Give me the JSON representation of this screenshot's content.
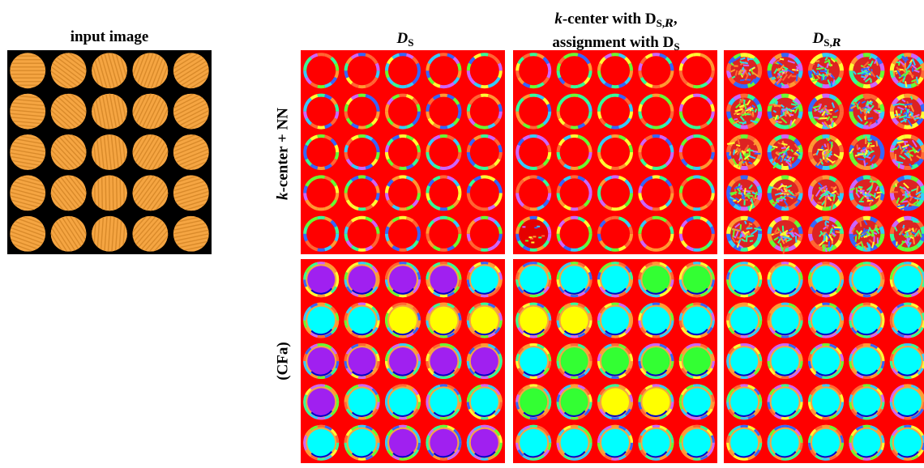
{
  "labels": {
    "input_title": "input image",
    "col1": "D",
    "col1_sub": "S",
    "col2_line1_k": "k",
    "col2_line1_rest": "-center with D",
    "col2_line1_sub_s": "S,",
    "col2_line1_sub_r": "R",
    "col2_line1_comma": ",",
    "col2_line2": "assignment with D",
    "col2_line2_sub": "S",
    "col3": "D",
    "col3_sub_s": "S,",
    "col3_sub_r": "R",
    "row1_k": "k",
    "row1_rest": "-center + NN",
    "row2": "(CFa)"
  },
  "colors": {
    "background_red": "#ff0000",
    "disc_orange": "#f5a542",
    "stripe_orange": "#d98a2a",
    "purple": "#a020f0",
    "cyan": "#00ffff",
    "yellow": "#ffff00",
    "green": "#33ff33",
    "dark_blue": "#0000cc"
  },
  "panels": [
    {
      "id": "knn-ds",
      "style": "ring"
    },
    {
      "id": "knn-mix",
      "style": "ring-mix"
    },
    {
      "id": "knn-dsr",
      "style": "noisy"
    },
    {
      "id": "cfa-ds",
      "fills": [
        [
          "purple",
          "purple",
          "purple",
          "purple",
          "cyan"
        ],
        [
          "cyan",
          "cyan",
          "yellow",
          "yellow",
          "yellow"
        ],
        [
          "purple",
          "purple",
          "purple",
          "purple",
          "purple"
        ],
        [
          "purple",
          "cyan",
          "cyan",
          "cyan",
          "cyan"
        ],
        [
          "cyan",
          "cyan",
          "purple",
          "purple",
          "purple"
        ]
      ]
    },
    {
      "id": "cfa-mix",
      "fills": [
        [
          "cyan",
          "cyan",
          "cyan",
          "green",
          "green"
        ],
        [
          "yellow",
          "yellow",
          "cyan",
          "cyan",
          "cyan"
        ],
        [
          "cyan",
          "green",
          "green",
          "green",
          "green"
        ],
        [
          "green",
          "green",
          "yellow",
          "yellow",
          "cyan"
        ],
        [
          "cyan",
          "cyan",
          "cyan",
          "cyan",
          "cyan"
        ]
      ]
    },
    {
      "id": "cfa-dsr",
      "fills": [
        [
          "cyan",
          "cyan",
          "cyan",
          "cyan",
          "cyan"
        ],
        [
          "cyan",
          "cyan",
          "cyan",
          "cyan",
          "cyan"
        ],
        [
          "cyan",
          "cyan",
          "cyan",
          "cyan",
          "cyan"
        ],
        [
          "cyan",
          "cyan",
          "cyan",
          "cyan",
          "cyan"
        ],
        [
          "cyan",
          "cyan",
          "cyan",
          "cyan",
          "cyan"
        ]
      ]
    }
  ]
}
